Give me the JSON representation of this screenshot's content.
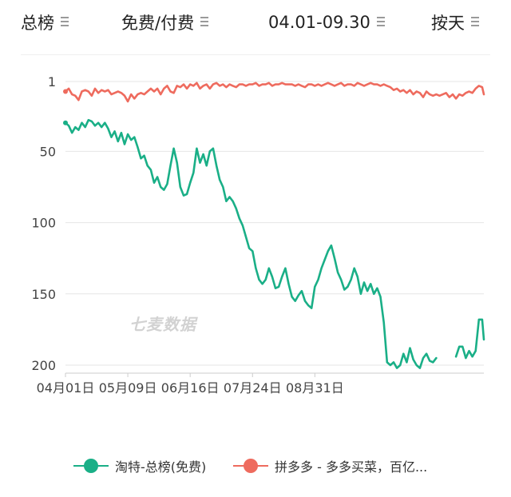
{
  "filters": {
    "ranking": "总榜",
    "pay_type": "免费/付费",
    "date_range": "04.01-09.30",
    "granularity": "按天"
  },
  "icons": {
    "filter_menu": "menu-icon"
  },
  "watermark": "七麦数据",
  "colors": {
    "series_green": "#1aaf87",
    "series_red": "#ee6b5e",
    "grid": "#e6e6e6"
  },
  "chart_data": {
    "type": "line",
    "y_inverted": true,
    "ylim": [
      1,
      200
    ],
    "yticks": [
      1,
      50,
      100,
      150,
      200
    ],
    "xticks": [
      "04月01日",
      "05月09日",
      "06月16日",
      "07月24日",
      "08月31日"
    ],
    "x_start": "04月01日",
    "x_unit": "day",
    "grid": "horizontal",
    "legend_position": "bottom",
    "series": [
      {
        "name": "淘特-总榜(免费)",
        "color": "#1aaf87",
        "points": [
          [
            0,
            30
          ],
          [
            2,
            32
          ],
          [
            4,
            37
          ],
          [
            6,
            33
          ],
          [
            8,
            35
          ],
          [
            10,
            30
          ],
          [
            12,
            33
          ],
          [
            14,
            28
          ],
          [
            16,
            29
          ],
          [
            18,
            32
          ],
          [
            20,
            30
          ],
          [
            22,
            33
          ],
          [
            24,
            30
          ],
          [
            26,
            34
          ],
          [
            28,
            40
          ],
          [
            30,
            36
          ],
          [
            32,
            43
          ],
          [
            34,
            37
          ],
          [
            36,
            45
          ],
          [
            38,
            38
          ],
          [
            40,
            42
          ],
          [
            42,
            40
          ],
          [
            44,
            47
          ],
          [
            46,
            55
          ],
          [
            48,
            53
          ],
          [
            50,
            60
          ],
          [
            52,
            63
          ],
          [
            54,
            72
          ],
          [
            56,
            68
          ],
          [
            58,
            75
          ],
          [
            60,
            77
          ],
          [
            62,
            73
          ],
          [
            64,
            60
          ],
          [
            66,
            48
          ],
          [
            68,
            58
          ],
          [
            70,
            75
          ],
          [
            72,
            81
          ],
          [
            74,
            80
          ],
          [
            76,
            72
          ],
          [
            78,
            65
          ],
          [
            80,
            48
          ],
          [
            82,
            58
          ],
          [
            84,
            52
          ],
          [
            86,
            60
          ],
          [
            88,
            50
          ],
          [
            90,
            48
          ],
          [
            92,
            60
          ],
          [
            94,
            70
          ],
          [
            96,
            75
          ],
          [
            98,
            85
          ],
          [
            100,
            82
          ],
          [
            102,
            85
          ],
          [
            104,
            90
          ],
          [
            106,
            97
          ],
          [
            108,
            102
          ],
          [
            110,
            110
          ],
          [
            112,
            118
          ],
          [
            114,
            120
          ],
          [
            116,
            132
          ],
          [
            118,
            140
          ],
          [
            120,
            143
          ],
          [
            122,
            140
          ],
          [
            124,
            132
          ],
          [
            126,
            138
          ],
          [
            128,
            146
          ],
          [
            130,
            145
          ],
          [
            132,
            138
          ],
          [
            134,
            132
          ],
          [
            136,
            143
          ],
          [
            138,
            152
          ],
          [
            140,
            155
          ],
          [
            142,
            151
          ],
          [
            144,
            148
          ],
          [
            146,
            155
          ],
          [
            148,
            158
          ],
          [
            150,
            160
          ],
          [
            152,
            145
          ],
          [
            154,
            140
          ],
          [
            156,
            132
          ],
          [
            158,
            126
          ],
          [
            160,
            120
          ],
          [
            162,
            116
          ],
          [
            164,
            125
          ],
          [
            166,
            135
          ],
          [
            168,
            140
          ],
          [
            170,
            147
          ],
          [
            172,
            145
          ],
          [
            174,
            140
          ],
          [
            176,
            132
          ],
          [
            178,
            138
          ],
          [
            180,
            150
          ],
          [
            182,
            142
          ],
          [
            184,
            148
          ],
          [
            186,
            143
          ],
          [
            188,
            150
          ],
          [
            190,
            146
          ],
          [
            192,
            152
          ],
          [
            194,
            170
          ],
          [
            196,
            198
          ],
          [
            198,
            200
          ],
          [
            200,
            198
          ],
          [
            202,
            202
          ],
          [
            204,
            200
          ],
          [
            206,
            192
          ],
          [
            208,
            198
          ],
          [
            210,
            188
          ],
          [
            212,
            196
          ],
          [
            214,
            200
          ],
          [
            216,
            202
          ],
          [
            218,
            195
          ],
          [
            220,
            192
          ],
          [
            222,
            197
          ],
          [
            224,
            198
          ],
          [
            226,
            195
          ],
          null,
          [
            238,
            194
          ],
          [
            240,
            187
          ],
          [
            242,
            187
          ],
          [
            244,
            195
          ],
          [
            246,
            190
          ],
          [
            248,
            194
          ],
          [
            250,
            190
          ],
          [
            252,
            168
          ],
          [
            254,
            168
          ],
          [
            255,
            182
          ]
        ]
      },
      {
        "name": "拼多多 - 多多买菜，百亿...",
        "color": "#ee6b5e",
        "points": [
          [
            0,
            8
          ],
          [
            2,
            6
          ],
          [
            4,
            10
          ],
          [
            6,
            11
          ],
          [
            8,
            14
          ],
          [
            10,
            8
          ],
          [
            12,
            7
          ],
          [
            14,
            8
          ],
          [
            16,
            11
          ],
          [
            18,
            6
          ],
          [
            20,
            9
          ],
          [
            22,
            7
          ],
          [
            24,
            8
          ],
          [
            26,
            7
          ],
          [
            28,
            10
          ],
          [
            30,
            9
          ],
          [
            32,
            8
          ],
          [
            34,
            9
          ],
          [
            36,
            11
          ],
          [
            38,
            15
          ],
          [
            40,
            10
          ],
          [
            42,
            13
          ],
          [
            44,
            10
          ],
          [
            46,
            9
          ],
          [
            48,
            10
          ],
          [
            50,
            8
          ],
          [
            52,
            6
          ],
          [
            54,
            8
          ],
          [
            56,
            6
          ],
          [
            58,
            10
          ],
          [
            60,
            6
          ],
          [
            62,
            4
          ],
          [
            64,
            8
          ],
          [
            66,
            9
          ],
          [
            68,
            4
          ],
          [
            70,
            5
          ],
          [
            72,
            3
          ],
          [
            74,
            6
          ],
          [
            76,
            3
          ],
          [
            78,
            4
          ],
          [
            80,
            2
          ],
          [
            82,
            6
          ],
          [
            84,
            4
          ],
          [
            86,
            3
          ],
          [
            88,
            6
          ],
          [
            90,
            3
          ],
          [
            92,
            2
          ],
          [
            94,
            4
          ],
          [
            96,
            3
          ],
          [
            98,
            5
          ],
          [
            100,
            3
          ],
          [
            102,
            4
          ],
          [
            104,
            5
          ],
          [
            106,
            3
          ],
          [
            108,
            3
          ],
          [
            110,
            4
          ],
          [
            112,
            3
          ],
          [
            114,
            3
          ],
          [
            116,
            2
          ],
          [
            118,
            4
          ],
          [
            120,
            3
          ],
          [
            122,
            3
          ],
          [
            124,
            2
          ],
          [
            126,
            4
          ],
          [
            128,
            3
          ],
          [
            130,
            3
          ],
          [
            132,
            2
          ],
          [
            134,
            3
          ],
          [
            136,
            3
          ],
          [
            138,
            3
          ],
          [
            140,
            4
          ],
          [
            142,
            3
          ],
          [
            144,
            4
          ],
          [
            146,
            5
          ],
          [
            148,
            3
          ],
          [
            150,
            3
          ],
          [
            152,
            4
          ],
          [
            154,
            3
          ],
          [
            156,
            4
          ],
          [
            158,
            3
          ],
          [
            160,
            2
          ],
          [
            162,
            3
          ],
          [
            164,
            4
          ],
          [
            166,
            3
          ],
          [
            168,
            2
          ],
          [
            170,
            4
          ],
          [
            172,
            3
          ],
          [
            174,
            3
          ],
          [
            176,
            4
          ],
          [
            178,
            2
          ],
          [
            180,
            3
          ],
          [
            182,
            4
          ],
          [
            184,
            3
          ],
          [
            186,
            2
          ],
          [
            188,
            3
          ],
          [
            190,
            3
          ],
          [
            192,
            4
          ],
          [
            194,
            3
          ],
          [
            196,
            4
          ],
          [
            198,
            5
          ],
          [
            200,
            7
          ],
          [
            202,
            6
          ],
          [
            204,
            8
          ],
          [
            206,
            7
          ],
          [
            208,
            9
          ],
          [
            210,
            7
          ],
          [
            212,
            10
          ],
          [
            214,
            8
          ],
          [
            216,
            9
          ],
          [
            218,
            12
          ],
          [
            220,
            8
          ],
          [
            222,
            10
          ],
          [
            224,
            11
          ],
          [
            226,
            10
          ],
          [
            228,
            11
          ],
          [
            230,
            10
          ],
          [
            232,
            9
          ],
          [
            234,
            12
          ],
          [
            236,
            10
          ],
          [
            238,
            13
          ],
          [
            240,
            10
          ],
          [
            242,
            11
          ],
          [
            244,
            9
          ],
          [
            246,
            8
          ],
          [
            248,
            9
          ],
          [
            250,
            6
          ],
          [
            252,
            4
          ],
          [
            254,
            5
          ],
          [
            255,
            10
          ]
        ]
      }
    ]
  }
}
